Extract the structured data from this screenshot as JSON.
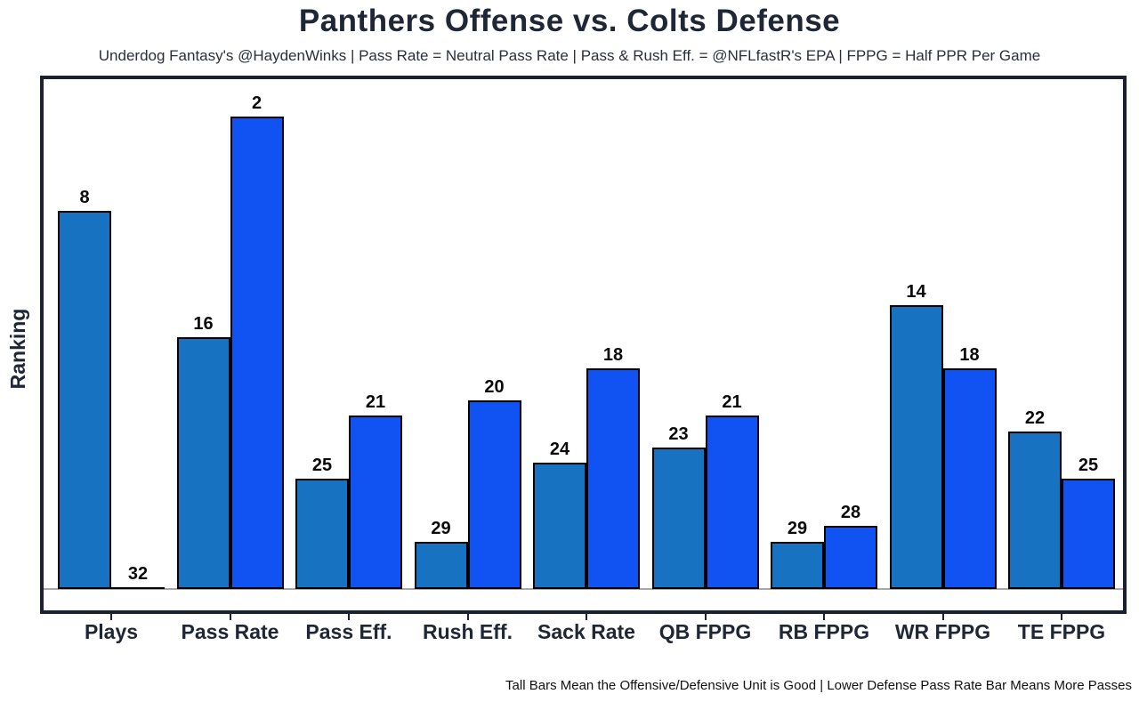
{
  "title": "Panthers Offense vs. Colts Defense",
  "subtitle": "Underdog Fantasy's @HaydenWinks | Pass Rate = Neutral Pass Rate | Pass & Rush Eff. = @NFLfastR's EPA | FPPG = Half PPR Per Game",
  "footnote": "Tall Bars Mean the Offensive/Defensive Unit is Good | Lower Defense Pass Rate Bar Means More Passes",
  "colors": {
    "offense_bar": "#1773c2",
    "defense_bar": "#1052f2",
    "bar_edge": "#000000",
    "frame": "#1b2130",
    "text": "#1f2636",
    "baseline": "#a8a8a8",
    "background": "#ffffff"
  },
  "chart_data": {
    "type": "bar",
    "title": "Panthers Offense vs. Colts Defense",
    "subtitle": "Underdog Fantasy's @HaydenWinks | Pass Rate = Neutral Pass Rate | Pass & Rush Eff. = @NFLfastR's EPA | FPPG = Half PPR Per Game",
    "ylabel": "Ranking",
    "xlabel": "",
    "categories": [
      "Plays",
      "Pass Rate",
      "Pass Eff.",
      "Rush Eff.",
      "Sack Rate",
      "QB FPPG",
      "RB FPPG",
      "WR FPPG",
      "TE FPPG"
    ],
    "series": [
      {
        "name": "Offense",
        "color": "#1773c2",
        "values": [
          8,
          16,
          25,
          29,
          24,
          23,
          29,
          14,
          22
        ]
      },
      {
        "name": "Defense",
        "color": "#1052f2",
        "values": [
          32,
          2,
          21,
          20,
          18,
          21,
          28,
          18,
          25
        ]
      }
    ],
    "value_semantics": "NFL ranking 1-32; bar height = 32 - rank (rank 1 tallest, rank 32 zero height)",
    "value_labels_shown": true,
    "grid": false,
    "legend_position": "none",
    "annotation": "Tall Bars Mean the Offensive/Defensive Unit is Good | Lower Defense Pass Rate Bar Means More Passes"
  }
}
